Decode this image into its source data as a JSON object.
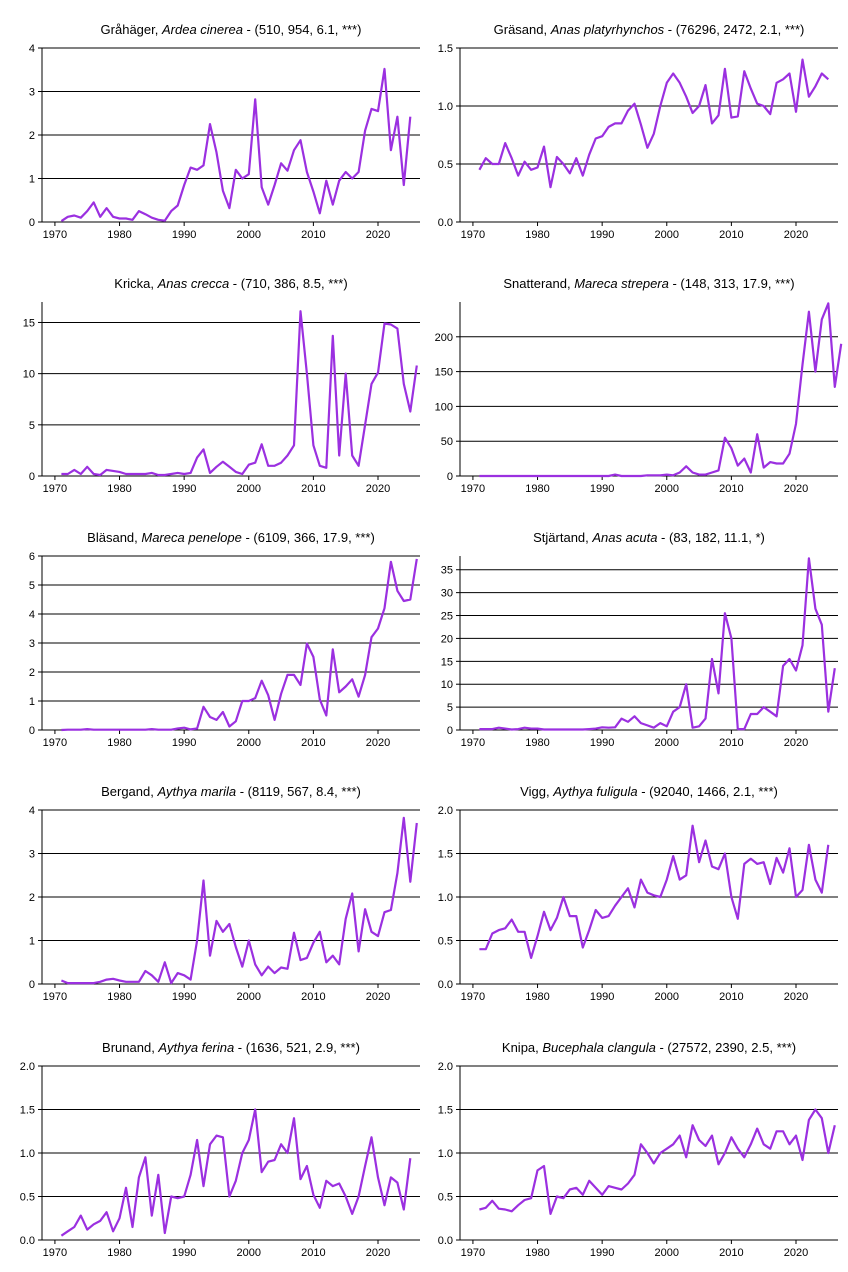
{
  "chart_data": [
    {
      "type": "line",
      "title": {
        "common": "Gråhäger, ",
        "latin": "Ardea cinerea",
        "stats": " - (510, 954, 6.1, ***)"
      },
      "ylim": [
        0,
        4
      ],
      "yticks": [
        0,
        1,
        2,
        3,
        4
      ],
      "ytick_labels": [
        "0",
        "1",
        "2",
        "3",
        "4"
      ],
      "xlim": [
        1968,
        2026.5
      ],
      "xticks": [
        1970,
        1980,
        1990,
        2000,
        2010,
        2020
      ],
      "grid": "horizontal",
      "color": "#9b30e0",
      "x_start": 1971,
      "values": [
        0.02,
        0.12,
        0.15,
        0.1,
        0.25,
        0.45,
        0.12,
        0.32,
        0.12,
        0.08,
        0.08,
        0.05,
        0.25,
        0.18,
        0.1,
        0.05,
        0.03,
        0.25,
        0.38,
        0.85,
        1.25,
        1.2,
        1.3,
        2.25,
        1.6,
        0.72,
        0.32,
        1.2,
        1.0,
        1.1,
        2.82,
        0.8,
        0.4,
        0.85,
        1.35,
        1.18,
        1.65,
        1.88,
        1.15,
        0.7,
        0.2,
        0.95,
        0.4,
        0.95,
        1.15,
        1.0,
        1.15,
        2.1,
        2.6,
        2.55,
        3.52,
        1.65,
        2.42,
        0.85,
        2.42
      ]
    },
    {
      "type": "line",
      "title": {
        "common": "Gräsand, ",
        "latin": "Anas platyrhynchos",
        "stats": " - (76296, 2472, 2.1, ***)"
      },
      "ylim": [
        0,
        1.5
      ],
      "yticks": [
        0,
        0.5,
        1.0,
        1.5
      ],
      "ytick_labels": [
        "0.0",
        "0.5",
        "1.0",
        "1.5"
      ],
      "xlim": [
        1968,
        2026.5
      ],
      "xticks": [
        1970,
        1980,
        1990,
        2000,
        2010,
        2020
      ],
      "grid": "horizontal",
      "color": "#9b30e0",
      "x_start": 1971,
      "values": [
        0.45,
        0.55,
        0.5,
        0.5,
        0.68,
        0.55,
        0.4,
        0.52,
        0.45,
        0.47,
        0.65,
        0.3,
        0.56,
        0.5,
        0.42,
        0.55,
        0.4,
        0.58,
        0.72,
        0.74,
        0.82,
        0.85,
        0.85,
        0.96,
        1.02,
        0.84,
        0.64,
        0.76,
        1.0,
        1.2,
        1.28,
        1.2,
        1.08,
        0.94,
        1.0,
        1.18,
        0.85,
        0.92,
        1.32,
        0.9,
        0.91,
        1.3,
        1.15,
        1.02,
        1.0,
        0.93,
        1.2,
        1.23,
        1.28,
        0.95,
        1.4,
        1.08,
        1.17,
        1.28,
        1.23
      ]
    },
    {
      "type": "line",
      "title": {
        "common": "Kricka, ",
        "latin": "Anas crecca",
        "stats": " - (710, 386, 8.5, ***)"
      },
      "ylim": [
        0,
        17
      ],
      "yticks": [
        0,
        5,
        10,
        15
      ],
      "ytick_labels": [
        "0",
        "5",
        "10",
        "15"
      ],
      "xlim": [
        1968,
        2026.5
      ],
      "xticks": [
        1970,
        1980,
        1990,
        2000,
        2010,
        2020
      ],
      "grid": "horizontal",
      "color": "#9b30e0",
      "x_start": 1971,
      "values": [
        0.2,
        0.2,
        0.6,
        0.2,
        0.9,
        0.2,
        0.1,
        0.6,
        0.5,
        0.4,
        0.2,
        0.2,
        0.2,
        0.2,
        0.3,
        0.1,
        0.1,
        0.2,
        0.3,
        0.2,
        0.3,
        1.8,
        2.6,
        0.3,
        0.9,
        1.4,
        0.9,
        0.4,
        0.2,
        1.1,
        1.3,
        3.1,
        1.0,
        1.0,
        1.3,
        2.0,
        3.0,
        16.1,
        10.0,
        3.0,
        1.0,
        0.8,
        13.7,
        2.0,
        10.0,
        2.0,
        1.0,
        5.0,
        9.0,
        10.1,
        14.9,
        14.8,
        14.4,
        9.0,
        6.3,
        10.8
      ]
    },
    {
      "type": "line",
      "title": {
        "common": "Snatterand, ",
        "latin": "Mareca strepera",
        "stats": " - (148, 313, 17.9, ***)"
      },
      "ylim": [
        0,
        250
      ],
      "yticks": [
        0,
        50,
        100,
        150,
        200
      ],
      "ytick_labels": [
        "0",
        "50",
        "100",
        "150",
        "200"
      ],
      "xlim": [
        1968,
        2026.5
      ],
      "xticks": [
        1970,
        1980,
        1990,
        2000,
        2010,
        2020
      ],
      "grid": "horizontal",
      "color": "#9b30e0",
      "x_start": 1971,
      "values": [
        0,
        0,
        0,
        0,
        0,
        0,
        0,
        0,
        0,
        0,
        0,
        0,
        0,
        0,
        0,
        0,
        0,
        0,
        0,
        0,
        0,
        2,
        0,
        0,
        0,
        0,
        1,
        1,
        1,
        2,
        1,
        5,
        14,
        5,
        2,
        2,
        5,
        8,
        55,
        40,
        15,
        25,
        5,
        60,
        12,
        20,
        18,
        18,
        32,
        75,
        160,
        236,
        150,
        225,
        248,
        128,
        190
      ]
    },
    {
      "type": "line",
      "title": {
        "common": "Bläsand, ",
        "latin": "Mareca penelope",
        "stats": " - (6109, 366, 17.9, ***)"
      },
      "ylim": [
        0,
        6
      ],
      "yticks": [
        0,
        1,
        2,
        3,
        4,
        5,
        6
      ],
      "ytick_labels": [
        "0",
        "1",
        "2",
        "3",
        "4",
        "5",
        "6"
      ],
      "xlim": [
        1968,
        2026.5
      ],
      "xticks": [
        1970,
        1980,
        1990,
        2000,
        2010,
        2020
      ],
      "grid": "horizontal",
      "color": "#9b30e0",
      "x_start": 1971,
      "values": [
        0,
        0.01,
        0.01,
        0.01,
        0.03,
        0.01,
        0.01,
        0.01,
        0.01,
        0.01,
        0.01,
        0.01,
        0.01,
        0.01,
        0.03,
        0.01,
        0.01,
        0.01,
        0.05,
        0.08,
        0.02,
        0.05,
        0.8,
        0.45,
        0.35,
        0.62,
        0.12,
        0.3,
        1.0,
        1.0,
        1.1,
        1.7,
        1.2,
        0.35,
        1.25,
        1.9,
        1.9,
        1.55,
        2.98,
        2.52,
        1.05,
        0.5,
        2.78,
        1.3,
        1.5,
        1.75,
        1.15,
        1.9,
        3.2,
        3.5,
        4.2,
        5.8,
        4.8,
        4.45,
        4.5,
        5.9
      ]
    },
    {
      "type": "line",
      "title": {
        "common": "Stjärtand, ",
        "latin": "Anas acuta",
        "stats": " - (83, 182, 11.1, *)"
      },
      "ylim": [
        0,
        38
      ],
      "yticks": [
        0,
        5,
        10,
        15,
        20,
        25,
        30,
        35
      ],
      "ytick_labels": [
        "0",
        "5",
        "10",
        "15",
        "20",
        "25",
        "30",
        "35"
      ],
      "xlim": [
        1968,
        2026.5
      ],
      "xticks": [
        1970,
        1980,
        1990,
        2000,
        2010,
        2020
      ],
      "grid": "horizontal",
      "color": "#9b30e0",
      "x_start": 1971,
      "values": [
        0.2,
        0.2,
        0.2,
        0.5,
        0.3,
        0.1,
        0.2,
        0.5,
        0.3,
        0.3,
        0.1,
        0.1,
        0.1,
        0.1,
        0.1,
        0.1,
        0.1,
        0.2,
        0.3,
        0.6,
        0.5,
        0.6,
        2.5,
        1.8,
        3.0,
        1.5,
        1.0,
        0.5,
        1.5,
        0.8,
        4.0,
        5.0,
        10.0,
        0.5,
        0.8,
        2.5,
        15.5,
        8.0,
        25.5,
        20.0,
        0.2,
        0.2,
        3.5,
        3.5,
        5.0,
        4.0,
        3.0,
        14.0,
        15.5,
        13.0,
        18.5,
        37.5,
        26.5,
        23.0,
        4.0,
        13.5
      ]
    },
    {
      "type": "line",
      "title": {
        "common": "Bergand, ",
        "latin": "Aythya marila",
        "stats": " - (8119, 567, 8.4, ***)"
      },
      "ylim": [
        0,
        4
      ],
      "yticks": [
        0,
        1,
        2,
        3,
        4
      ],
      "ytick_labels": [
        "0",
        "1",
        "2",
        "3",
        "4"
      ],
      "xlim": [
        1968,
        2026.5
      ],
      "xticks": [
        1970,
        1980,
        1990,
        2000,
        2010,
        2020
      ],
      "grid": "horizontal",
      "color": "#9b30e0",
      "x_start": 1971,
      "values": [
        0.08,
        0.02,
        0.02,
        0.02,
        0.02,
        0.02,
        0.05,
        0.1,
        0.12,
        0.08,
        0.05,
        0.05,
        0.05,
        0.3,
        0.2,
        0.05,
        0.5,
        0.02,
        0.25,
        0.2,
        0.1,
        1.0,
        2.38,
        0.65,
        1.45,
        1.2,
        1.38,
        0.85,
        0.4,
        1.0,
        0.45,
        0.2,
        0.4,
        0.25,
        0.38,
        0.35,
        1.18,
        0.55,
        0.6,
        0.95,
        1.2,
        0.5,
        0.65,
        0.45,
        1.5,
        2.08,
        0.75,
        1.72,
        1.2,
        1.1,
        1.65,
        1.7,
        2.55,
        3.82,
        2.35,
        3.7
      ]
    },
    {
      "type": "line",
      "title": {
        "common": "Vigg, ",
        "latin": "Aythya fuligula",
        "stats": " - (92040, 1466, 2.1, ***)"
      },
      "ylim": [
        0,
        2.0
      ],
      "yticks": [
        0,
        0.5,
        1.0,
        1.5,
        2.0
      ],
      "ytick_labels": [
        "0.0",
        "0.5",
        "1.0",
        "1.5",
        "2.0"
      ],
      "xlim": [
        1968,
        2026.5
      ],
      "xticks": [
        1970,
        1980,
        1990,
        2000,
        2010,
        2020
      ],
      "grid": "horizontal",
      "color": "#9b30e0",
      "x_start": 1971,
      "values": [
        0.4,
        0.4,
        0.58,
        0.62,
        0.64,
        0.74,
        0.6,
        0.6,
        0.3,
        0.55,
        0.83,
        0.62,
        0.76,
        1.0,
        0.78,
        0.78,
        0.42,
        0.62,
        0.85,
        0.76,
        0.78,
        0.9,
        1.0,
        1.1,
        0.88,
        1.2,
        1.05,
        1.02,
        1.0,
        1.2,
        1.47,
        1.2,
        1.25,
        1.82,
        1.4,
        1.65,
        1.35,
        1.32,
        1.5,
        1.0,
        0.75,
        1.38,
        1.44,
        1.38,
        1.4,
        1.15,
        1.45,
        1.28,
        1.56,
        1.0,
        1.08,
        1.6,
        1.2,
        1.05,
        1.6
      ]
    },
    {
      "type": "line",
      "title": {
        "common": "Brunand, ",
        "latin": "Aythya ferina",
        "stats": " - (1636, 521, 2.9, ***)"
      },
      "ylim": [
        0,
        2.0
      ],
      "yticks": [
        0,
        0.5,
        1.0,
        1.5,
        2.0
      ],
      "ytick_labels": [
        "0.0",
        "0.5",
        "1.0",
        "1.5",
        "2.0"
      ],
      "xlim": [
        1968,
        2026.5
      ],
      "xticks": [
        1970,
        1980,
        1990,
        2000,
        2010,
        2020
      ],
      "grid": "horizontal",
      "color": "#9b30e0",
      "x_start": 1971,
      "values": [
        0.05,
        0.1,
        0.15,
        0.28,
        0.12,
        0.18,
        0.22,
        0.32,
        0.1,
        0.25,
        0.6,
        0.15,
        0.72,
        0.95,
        0.28,
        0.75,
        0.08,
        0.5,
        0.48,
        0.5,
        0.75,
        1.15,
        0.62,
        1.1,
        1.2,
        1.18,
        0.5,
        0.68,
        1.0,
        1.15,
        1.5,
        0.78,
        0.9,
        0.92,
        1.1,
        1.0,
        1.4,
        0.7,
        0.85,
        0.52,
        0.37,
        0.68,
        0.62,
        0.65,
        0.5,
        0.3,
        0.5,
        0.85,
        1.18,
        0.72,
        0.4,
        0.72,
        0.66,
        0.35,
        0.94
      ]
    },
    {
      "type": "line",
      "title": {
        "common": "Knipa, ",
        "latin": "Bucephala clangula",
        "stats": " - (27572, 2390, 2.5, ***)"
      },
      "ylim": [
        0,
        2.0
      ],
      "yticks": [
        0,
        0.5,
        1.0,
        1.5,
        2.0
      ],
      "ytick_labels": [
        "0.0",
        "0.5",
        "1.0",
        "1.5",
        "2.0"
      ],
      "xlim": [
        1968,
        2026.5
      ],
      "xticks": [
        1970,
        1980,
        1990,
        2000,
        2010,
        2020
      ],
      "grid": "horizontal",
      "color": "#9b30e0",
      "x_start": 1971,
      "values": [
        0.35,
        0.37,
        0.45,
        0.36,
        0.35,
        0.33,
        0.4,
        0.46,
        0.48,
        0.8,
        0.85,
        0.3,
        0.5,
        0.48,
        0.58,
        0.6,
        0.52,
        0.68,
        0.6,
        0.52,
        0.62,
        0.6,
        0.58,
        0.65,
        0.75,
        1.1,
        1.0,
        0.88,
        1.0,
        1.05,
        1.1,
        1.2,
        0.95,
        1.32,
        1.15,
        1.08,
        1.2,
        0.87,
        1.0,
        1.18,
        1.05,
        0.95,
        1.1,
        1.28,
        1.1,
        1.05,
        1.25,
        1.25,
        1.1,
        1.2,
        0.92,
        1.38,
        1.5,
        1.4,
        1.0,
        1.32
      ]
    }
  ]
}
